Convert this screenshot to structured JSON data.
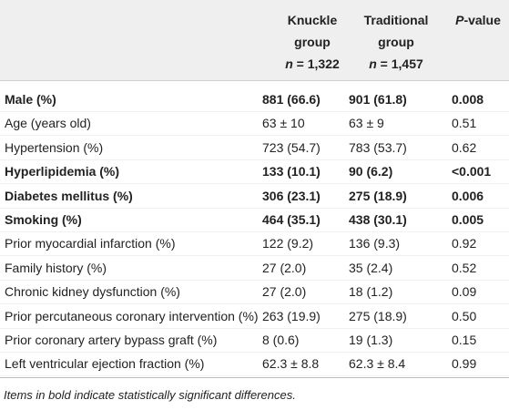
{
  "table": {
    "header": {
      "col1": {
        "lines": [
          "Knuckle",
          "group"
        ],
        "n_symbol": "n",
        "n_value": "= 1,322"
      },
      "col2": {
        "lines": [
          "Traditional",
          "group"
        ],
        "n_symbol": "n",
        "n_value": "= 1,457"
      },
      "col3": {
        "p_symbol": "P",
        "p_rest": "-value"
      }
    },
    "rows": [
      {
        "cells": [
          "Male (%)",
          "881 (66.6)",
          "901 (61.8)",
          "0.008"
        ],
        "bold": true
      },
      {
        "cells": [
          "Age (years old)",
          "63 ± 10",
          "63 ± 9",
          "0.51"
        ],
        "bold": false
      },
      {
        "cells": [
          "Hypertension (%)",
          "723 (54.7)",
          "783 (53.7)",
          "0.62"
        ],
        "bold": false
      },
      {
        "cells": [
          "Hyperlipidemia (%)",
          "133 (10.1)",
          "90 (6.2)",
          "<0.001"
        ],
        "bold": true
      },
      {
        "cells": [
          "Diabetes mellitus (%)",
          "306 (23.1)",
          "275 (18.9)",
          "0.006"
        ],
        "bold": true
      },
      {
        "cells": [
          "Smoking (%)",
          "464 (35.1)",
          "438 (30.1)",
          "0.005"
        ],
        "bold": true
      },
      {
        "cells": [
          "Prior myocardial infarction (%)",
          "122 (9.2)",
          "136 (9.3)",
          "0.92"
        ],
        "bold": false
      },
      {
        "cells": [
          "Family history (%)",
          "27 (2.0)",
          "35 (2.4)",
          "0.52"
        ],
        "bold": false
      },
      {
        "cells": [
          "Chronic kidney dysfunction (%)",
          "27 (2.0)",
          "18 (1.2)",
          "0.09"
        ],
        "bold": false
      },
      {
        "cells": [
          "Prior percutaneous coronary intervention (%)",
          "263 (19.9)",
          "275 (18.9)",
          "0.50"
        ],
        "bold": false
      },
      {
        "cells": [
          "Prior coronary artery bypass graft (%)",
          "8 (0.6)",
          "19 (1.3)",
          "0.15"
        ],
        "bold": false
      },
      {
        "cells": [
          "Left ventricular ejection fraction (%)",
          "62.3 ± 8.8",
          "62.3 ± 8.4",
          "0.99"
        ],
        "bold": false
      }
    ],
    "footnote": "Items in bold indicate statistically significant differences."
  }
}
